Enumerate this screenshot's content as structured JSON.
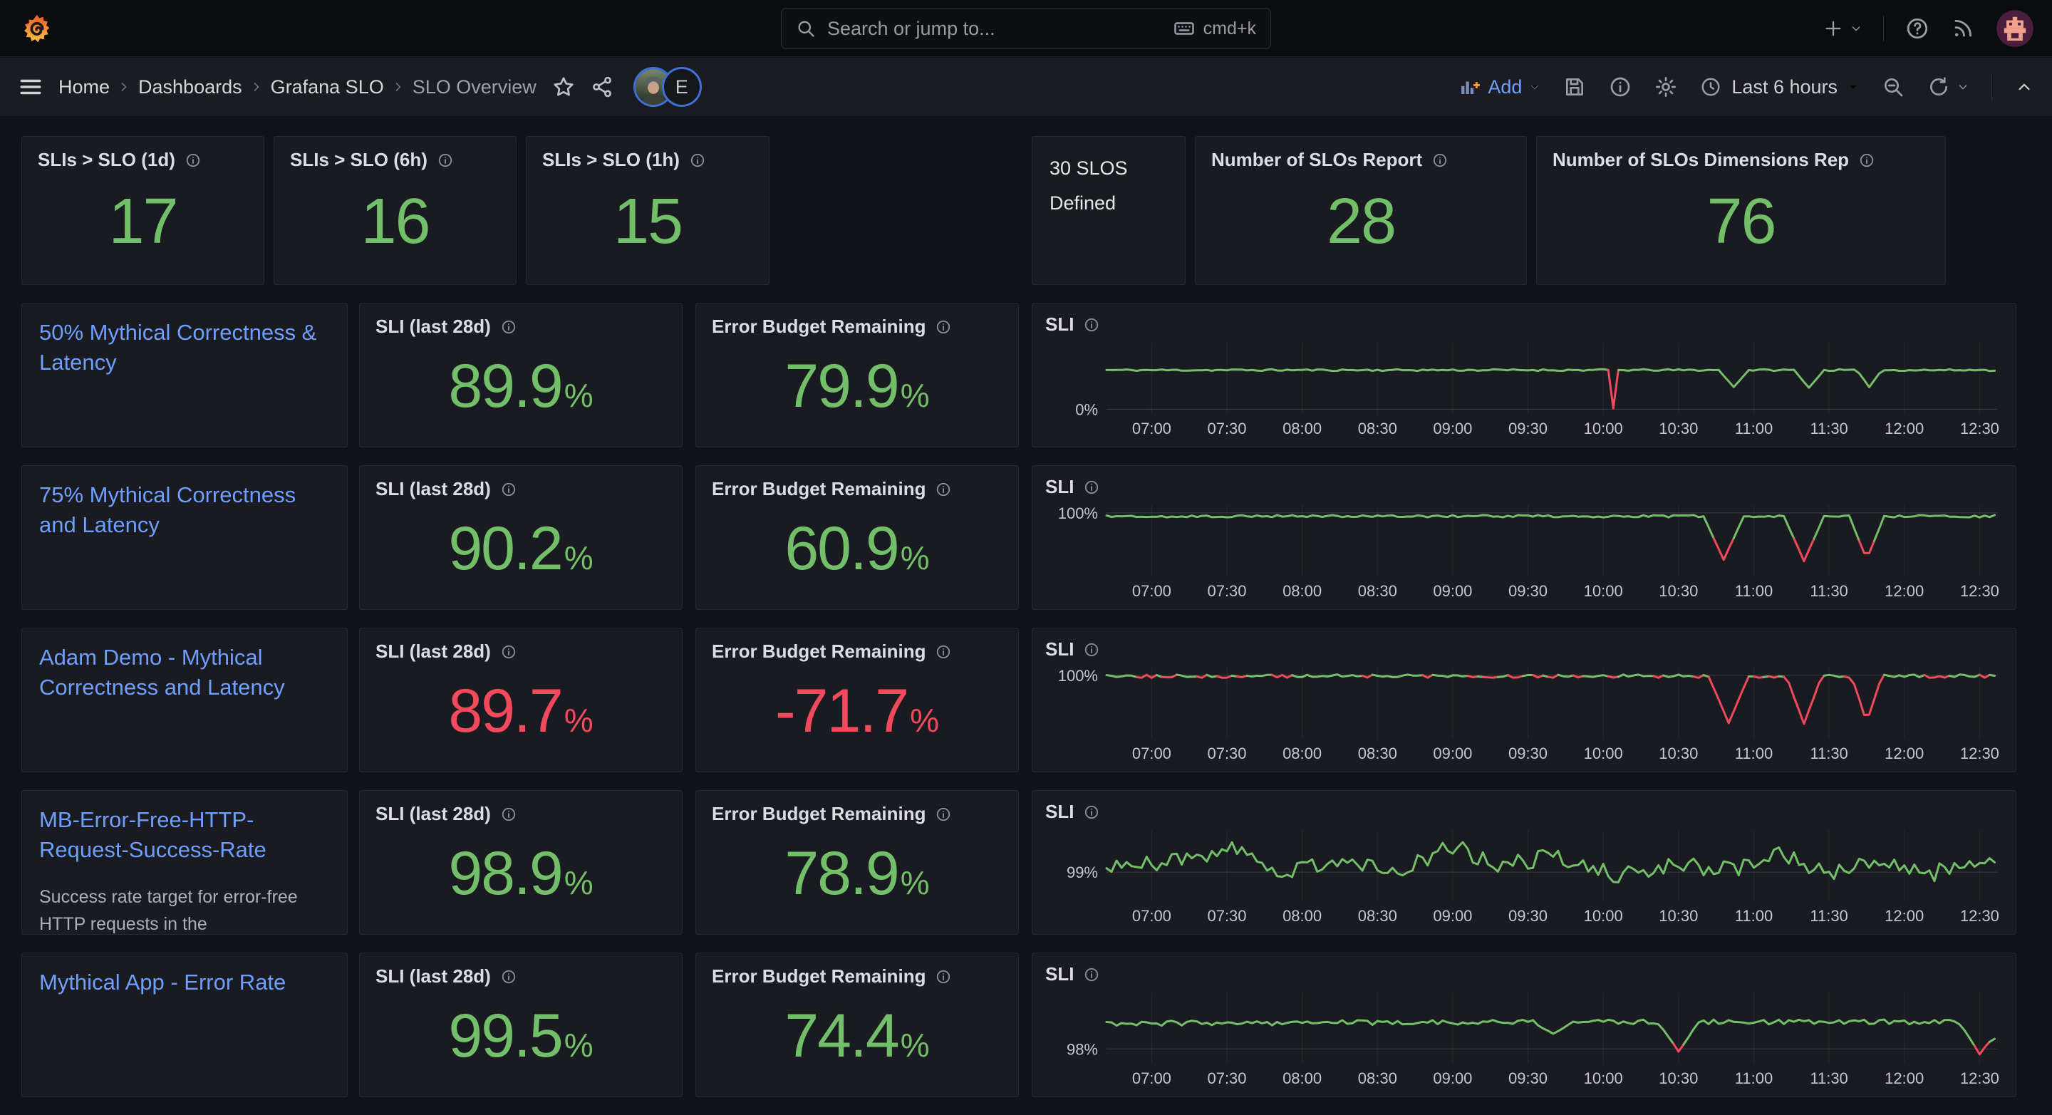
{
  "topbar": {
    "search_placeholder": "Search or jump to...",
    "shortcut": "cmd+k"
  },
  "breadcrumb": {
    "items": [
      "Home",
      "Dashboards",
      "Grafana SLO",
      "SLO Overview"
    ]
  },
  "avatar_badge": "E",
  "toolbar": {
    "add": "Add",
    "time_range": "Last 6 hours"
  },
  "colors": {
    "green": "#73bf69",
    "red": "#f2495c",
    "link": "#6e9fff"
  },
  "labels": {
    "sli28": "SLI (last 28d)",
    "ebr": "Error Budget Remaining",
    "sli": "SLI",
    "pct": "%"
  },
  "stats": [
    {
      "title": "SLIs > SLO (1d)",
      "value": "17"
    },
    {
      "title": "SLIs > SLO (6h)",
      "value": "16"
    },
    {
      "title": "SLIs > SLO (1h)",
      "value": "15"
    }
  ],
  "defined_text": "30 SLOS Defined",
  "stats_right": [
    {
      "title": "Number of SLOs Report",
      "value": "28"
    },
    {
      "title": "Number of SLOs Dimensions Rep",
      "value": "76"
    }
  ],
  "slo_rows": [
    {
      "title": "50% Mythical Correctness & Latency",
      "description": "",
      "sli_value": "89.9",
      "sli_color": "#73bf69",
      "ebr_value": "79.9",
      "ebr_color": "#73bf69"
    },
    {
      "title": "75% Mythical Correctness and Latency",
      "description": "",
      "sli_value": "90.2",
      "sli_color": "#73bf69",
      "ebr_value": "60.9",
      "ebr_color": "#73bf69"
    },
    {
      "title": "Adam Demo - Mythical Correctness and Latency",
      "description": "",
      "sli_value": "89.7",
      "sli_color": "#f2495c",
      "ebr_value": "-71.7",
      "ebr_color": "#f2495c"
    },
    {
      "title": "MB-Error-Free-HTTP-Request-Success-Rate",
      "description": "Success rate target for error-free HTTP requests in the",
      "sli_value": "98.9",
      "sli_color": "#73bf69",
      "ebr_value": "78.9",
      "ebr_color": "#73bf69"
    },
    {
      "title": "Mythical App - Error Rate",
      "description": "",
      "sli_value": "99.5",
      "sli_color": "#73bf69",
      "ebr_value": "74.4",
      "ebr_color": "#73bf69"
    }
  ],
  "chart_data": [
    {
      "type": "line",
      "title": "SLI",
      "legend": "none",
      "grid": "faint-vertical",
      "x_ticks": [
        "07:00",
        "07:30",
        "08:00",
        "08:30",
        "09:00",
        "09:30",
        "10:00",
        "10:30",
        "11:00",
        "11:30",
        "12:00",
        "12:30"
      ],
      "x_domain": [
        "06:42",
        "12:37"
      ],
      "y_top": 170,
      "y_bottom": -12,
      "y_tick": {
        "label": "0%",
        "value": 0
      },
      "points": [
        [
          "06:42",
          100
        ],
        [
          "10:02",
          100
        ],
        [
          "10:04",
          2
        ],
        [
          "10:06",
          100
        ],
        [
          "10:46",
          100
        ],
        [
          "10:52",
          57
        ],
        [
          "10:58",
          100
        ],
        [
          "11:16",
          100
        ],
        [
          "11:22",
          55
        ],
        [
          "11:28",
          100
        ],
        [
          "11:41",
          100
        ],
        [
          "11:46",
          57
        ],
        [
          "11:51",
          100
        ],
        [
          "12:37",
          100
        ]
      ],
      "noise": 2.2,
      "red_below": 40,
      "line_color": "#73bf69",
      "dip_color": "#f2495c"
    },
    {
      "type": "line",
      "title": "SLI",
      "legend": "none",
      "grid": "faint-vertical",
      "x_ticks": [
        "07:00",
        "07:30",
        "08:00",
        "08:30",
        "09:00",
        "09:30",
        "10:00",
        "10:30",
        "11:00",
        "11:30",
        "12:00",
        "12:30"
      ],
      "x_domain": [
        "06:42",
        "12:37"
      ],
      "y_top": 101.4,
      "y_bottom": 88.5,
      "y_tick": {
        "label": "100%",
        "value": 100
      },
      "points": [
        [
          "06:42",
          99.4
        ],
        [
          "10:40",
          99.4
        ],
        [
          "10:48",
          91.5
        ],
        [
          "10:56",
          99.4
        ],
        [
          "11:12",
          99.4
        ],
        [
          "11:20",
          91.3
        ],
        [
          "11:28",
          99.4
        ],
        [
          "11:38",
          99.4
        ],
        [
          "11:45",
          91.6
        ],
        [
          "11:52",
          99.4
        ],
        [
          "12:37",
          99.4
        ]
      ],
      "noise": 0.22,
      "red_below": 94,
      "line_color": "#73bf69",
      "dip_color": "#f2495c"
    },
    {
      "type": "line",
      "title": "SLI",
      "legend": "none",
      "grid": "faint-vertical",
      "x_ticks": [
        "07:00",
        "07:30",
        "08:00",
        "08:30",
        "09:00",
        "09:30",
        "10:00",
        "10:30",
        "11:00",
        "11:30",
        "12:00",
        "12:30"
      ],
      "x_domain": [
        "06:42",
        "12:37"
      ],
      "y_top": 101.4,
      "y_bottom": 88.5,
      "y_tick": {
        "label": "100%",
        "value": 100
      },
      "points": [
        [
          "06:42",
          99.85
        ],
        [
          "10:42",
          99.85
        ],
        [
          "10:50",
          91.4
        ],
        [
          "10:58",
          99.85
        ],
        [
          "11:13",
          99.85
        ],
        [
          "11:20",
          91.2
        ],
        [
          "11:27",
          99.85
        ],
        [
          "11:39",
          99.85
        ],
        [
          "11:45",
          91.5
        ],
        [
          "11:51",
          99.85
        ],
        [
          "12:37",
          99.85
        ]
      ],
      "noise": 0.3,
      "red_below": 99.65,
      "line_color": "#73bf69",
      "dip_color": "#f2495c"
    },
    {
      "type": "line",
      "title": "SLI",
      "legend": "none",
      "grid": "faint-vertical",
      "x_ticks": [
        "07:00",
        "07:30",
        "08:00",
        "08:30",
        "09:00",
        "09:30",
        "10:00",
        "10:30",
        "11:00",
        "11:30",
        "12:00",
        "12:30"
      ],
      "x_domain": [
        "06:42",
        "12:37"
      ],
      "y_top": 99.65,
      "y_bottom": 98.55,
      "y_tick": {
        "label": "99%",
        "value": 99
      },
      "points": [
        [
          "06:42",
          99.05
        ],
        [
          "07:10",
          99.2
        ],
        [
          "07:32",
          99.35
        ],
        [
          "07:50",
          99.0
        ],
        [
          "08:14",
          99.2
        ],
        [
          "08:40",
          99.05
        ],
        [
          "09:00",
          99.4
        ],
        [
          "09:18",
          99.1
        ],
        [
          "09:42",
          99.25
        ],
        [
          "10:05",
          98.95
        ],
        [
          "10:30",
          99.1
        ],
        [
          "10:55",
          99.05
        ],
        [
          "11:08",
          99.3
        ],
        [
          "11:30",
          99.0
        ],
        [
          "11:52",
          99.15
        ],
        [
          "12:10",
          98.95
        ],
        [
          "12:25",
          99.2
        ],
        [
          "12:37",
          99.1
        ]
      ],
      "noise": 0.13,
      "red_below": -1,
      "line_color": "#73bf69",
      "dip_color": "#f2495c"
    },
    {
      "type": "line",
      "title": "SLI",
      "legend": "none",
      "grid": "faint-vertical",
      "x_ticks": [
        "07:00",
        "07:30",
        "08:00",
        "08:30",
        "09:00",
        "09:30",
        "10:00",
        "10:30",
        "11:00",
        "11:30",
        "12:00",
        "12:30"
      ],
      "x_domain": [
        "06:42",
        "12:37"
      ],
      "y_top": 99.15,
      "y_bottom": 97.7,
      "y_tick": {
        "label": "98%",
        "value": 98
      },
      "points": [
        [
          "06:42",
          98.52
        ],
        [
          "09:32",
          98.55
        ],
        [
          "09:40",
          98.3
        ],
        [
          "09:48",
          98.55
        ],
        [
          "10:22",
          98.55
        ],
        [
          "10:30",
          97.95
        ],
        [
          "10:38",
          98.55
        ],
        [
          "12:22",
          98.55
        ],
        [
          "12:30",
          97.9
        ],
        [
          "12:34",
          98.15
        ],
        [
          "12:37",
          98.3
        ]
      ],
      "noise": 0.05,
      "red_below": 98.03,
      "line_color": "#73bf69",
      "dip_color": "#f2495c"
    }
  ]
}
